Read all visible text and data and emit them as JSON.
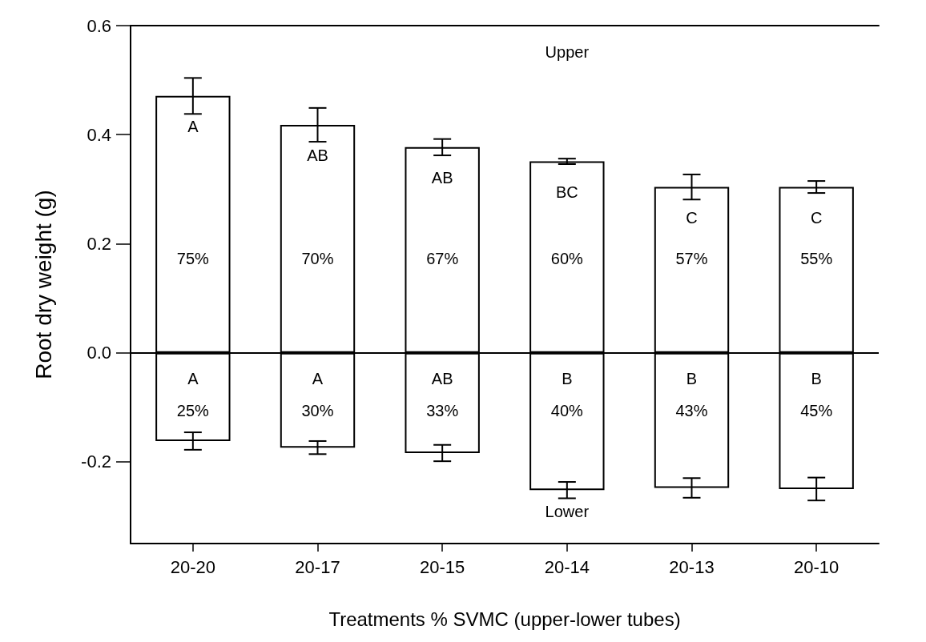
{
  "chart_data": {
    "type": "bar",
    "stacked": true,
    "xlabel": "Treatments % SVMC (upper-lower tubes)",
    "ylabel": "Root dry weight (g)",
    "categories": [
      "20-20",
      "20-17",
      "20-15",
      "20-14",
      "20-13",
      "20-10"
    ],
    "series": [
      {
        "color": "#ffffff",
        "values": [
          0.471,
          0.418,
          0.377,
          0.351,
          0.304,
          0.304
        ],
        "errors": [
          0.033,
          0.031,
          0.015,
          0.005,
          0.023,
          0.011
        ]
      },
      {
        "color": "#ffffff",
        "values": [
          -0.162,
          -0.174,
          -0.184,
          -0.252,
          -0.248,
          -0.25
        ],
        "errors": [
          0.016,
          0.012,
          0.015,
          0.015,
          0.018,
          0.021
        ]
      }
    ],
    "ylim": [
      -0.35,
      0.6
    ],
    "yticks": [
      {
        "value": -0.2,
        "label": "-0.2"
      },
      {
        "value": 0,
        "label": "0.0"
      },
      {
        "value": 0.2,
        "label": "0.2"
      },
      {
        "value": 0.4,
        "label": "0.4"
      },
      {
        "value": 0.6,
        "label": "0.6"
      }
    ],
    "ref_lines": [
      {
        "axis": "y",
        "value": 0,
        "color": "#000000"
      }
    ],
    "grid": false,
    "annotations": [
      "Upper",
      "Lower",
      "A",
      "AB",
      "AB",
      "BC",
      "C",
      "C",
      "75%",
      "70%",
      "67%",
      "60%",
      "57%",
      "55%",
      "A",
      "A",
      "AB",
      "B",
      "B",
      "B",
      "25%",
      "30%",
      "33%",
      "40%",
      "43%",
      "45%"
    ]
  }
}
